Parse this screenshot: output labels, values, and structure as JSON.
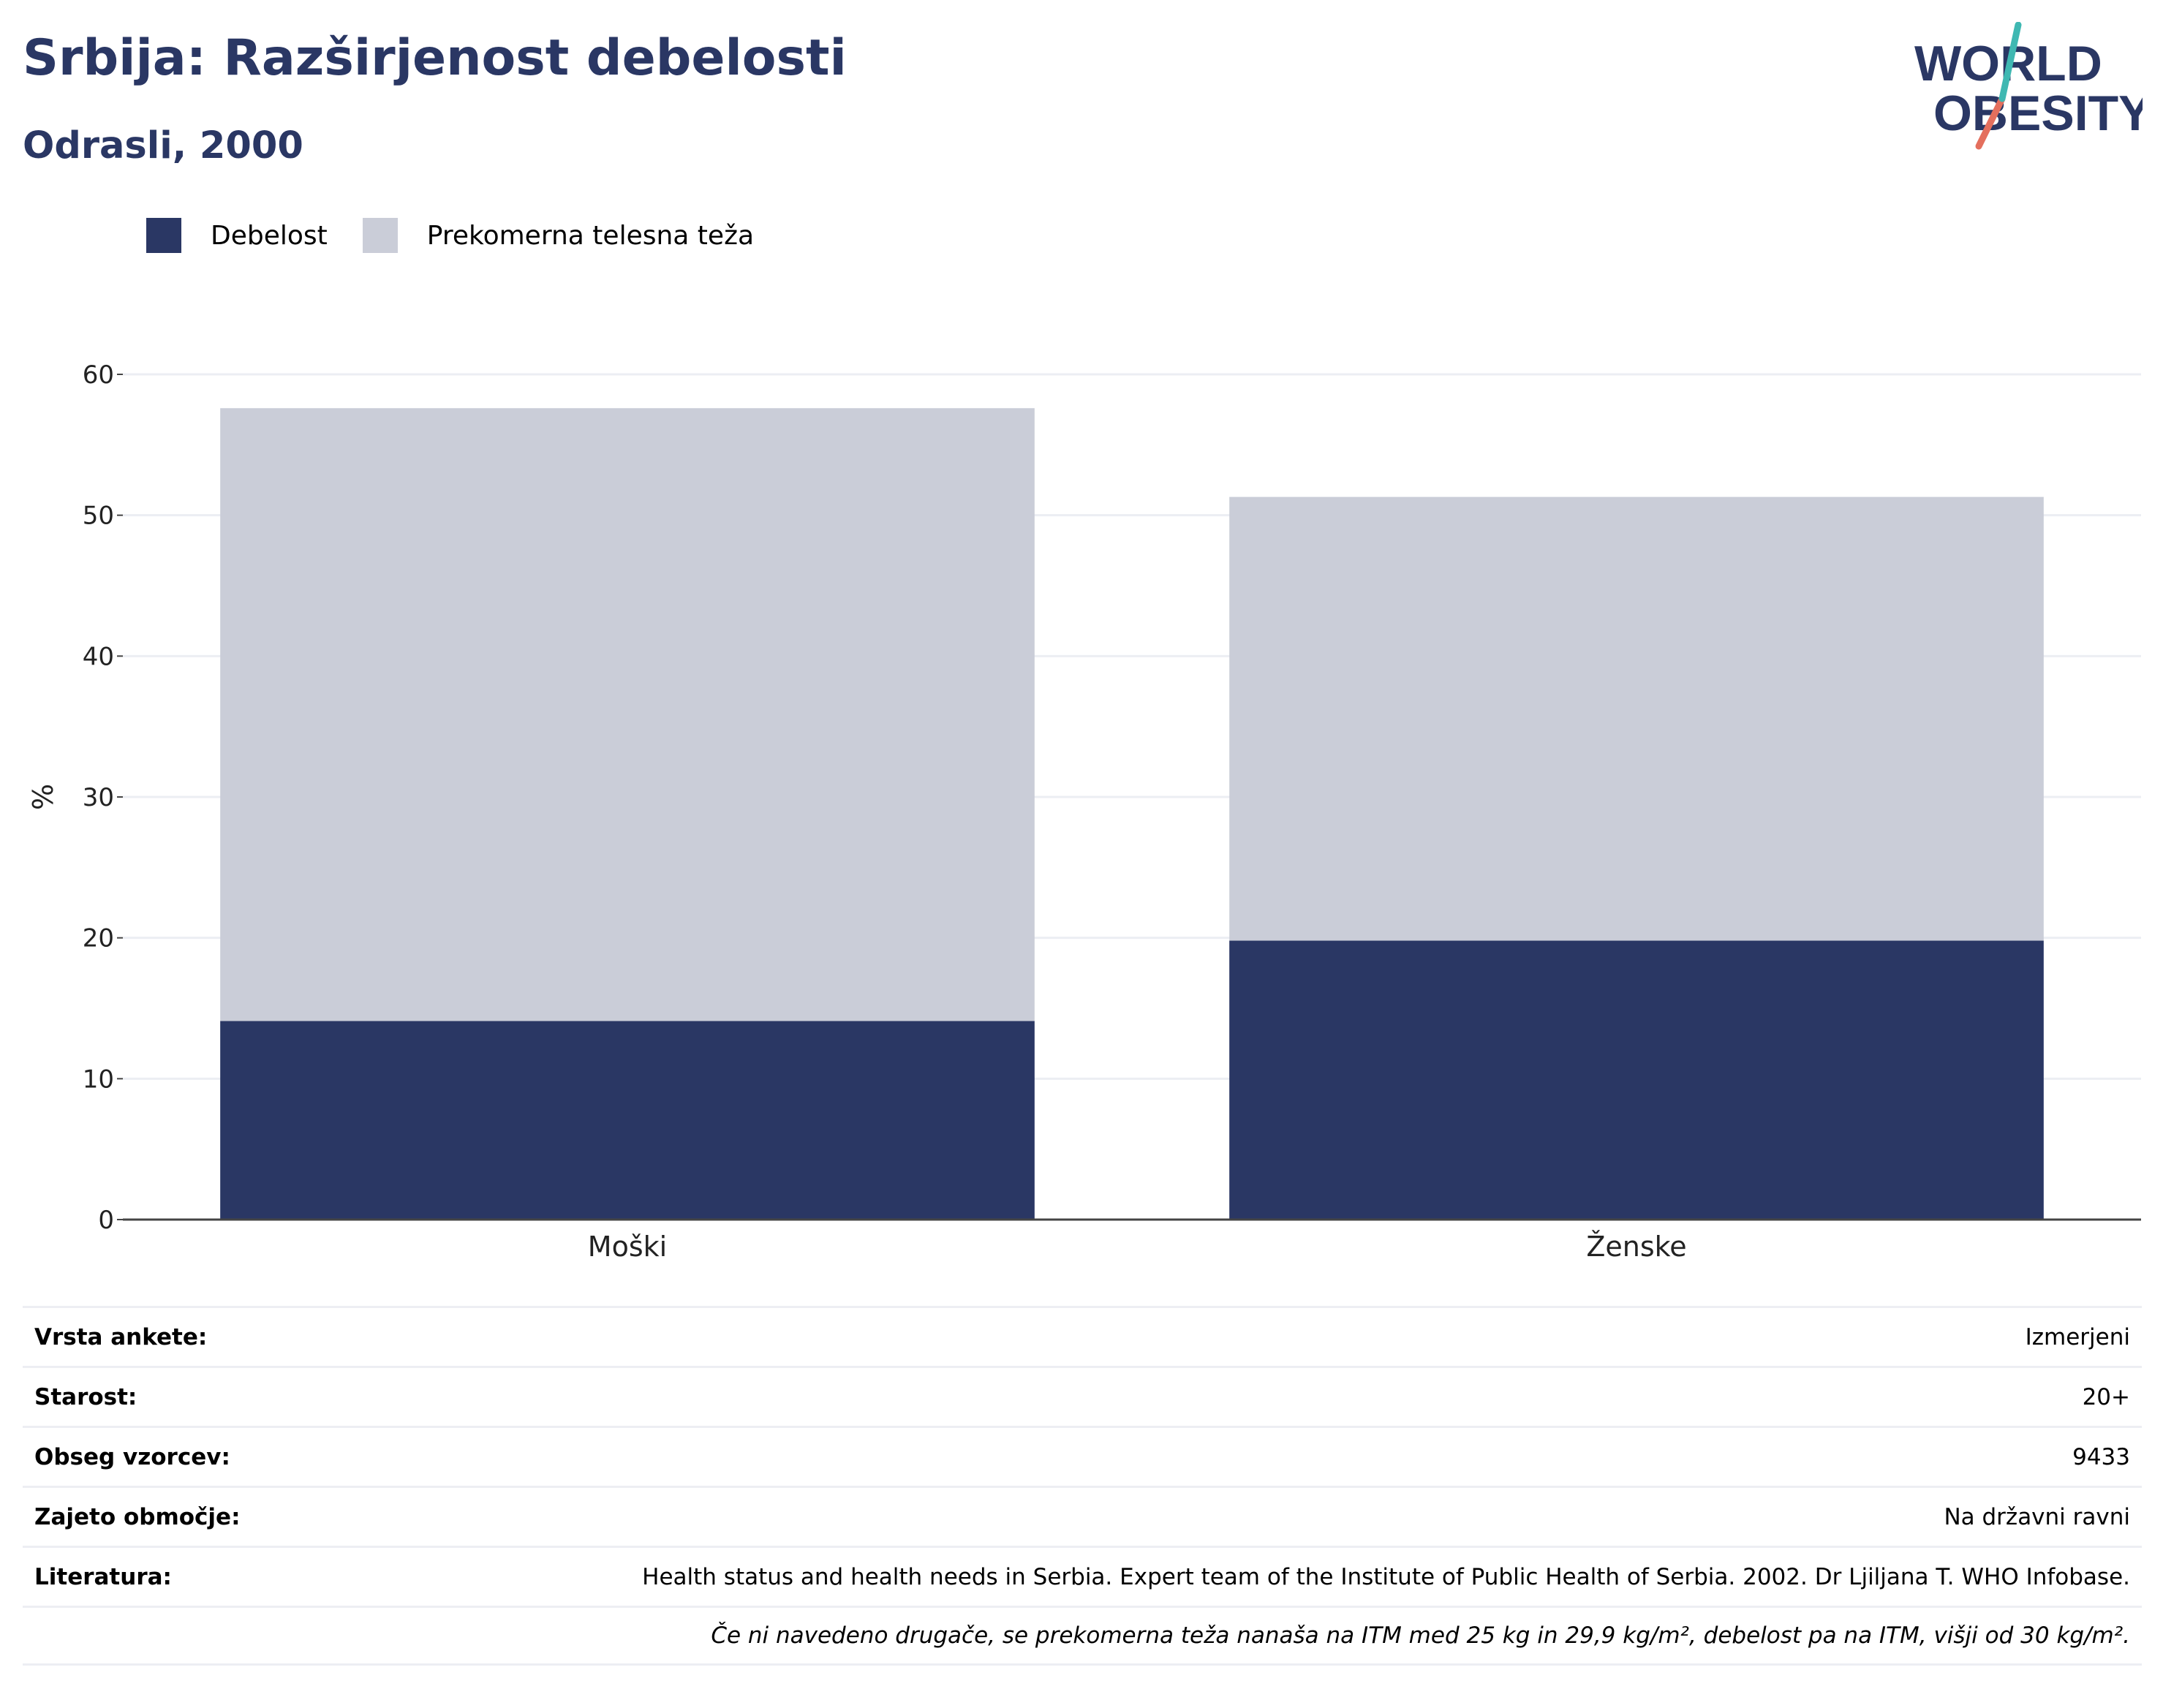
{
  "header": {
    "title": "Srbija: Razširjenost debelosti",
    "subtitle": "Odrasli, 2000"
  },
  "logo": {
    "line1": "WORLD",
    "line2": "OBESITY"
  },
  "legend": [
    {
      "label": "Debelost",
      "color": "#2a3764"
    },
    {
      "label": "Prekomerna telesna teža",
      "color": "#cacdd8"
    }
  ],
  "chart_data": {
    "type": "bar",
    "stacked": true,
    "categories": [
      "Moški",
      "Ženske"
    ],
    "series": [
      {
        "name": "Debelost",
        "values": [
          14.1,
          19.8
        ],
        "color": "#2a3764"
      },
      {
        "name": "Prekomerna telesna teža",
        "values": [
          43.5,
          31.5
        ],
        "color": "#cacdd8"
      }
    ],
    "ylabel": "%",
    "ylim": [
      0,
      60
    ],
    "yticks": [
      0,
      10,
      20,
      30,
      40,
      50,
      60
    ],
    "grid": true,
    "legend_position": "top-left"
  },
  "meta": [
    {
      "label": "Vrsta ankete:",
      "value": "Izmerjeni"
    },
    {
      "label": "Starost:",
      "value": "20+"
    },
    {
      "label": "Obseg vzorcev:",
      "value": "9433"
    },
    {
      "label": "Zajeto območje:",
      "value": "Na državni ravni"
    },
    {
      "label": "Literatura:",
      "value": "Health status and health needs in Serbia. Expert team of the Institute of Public Health of Serbia. 2002. Dr Ljiljana T. WHO Infobase."
    },
    {
      "label": "",
      "value": "Če ni navedeno drugače, se prekomerna teža nanaša na ITM med 25 kg in 29,9 kg/m², debelost pa na ITM, višji od 30 kg/m²."
    }
  ]
}
